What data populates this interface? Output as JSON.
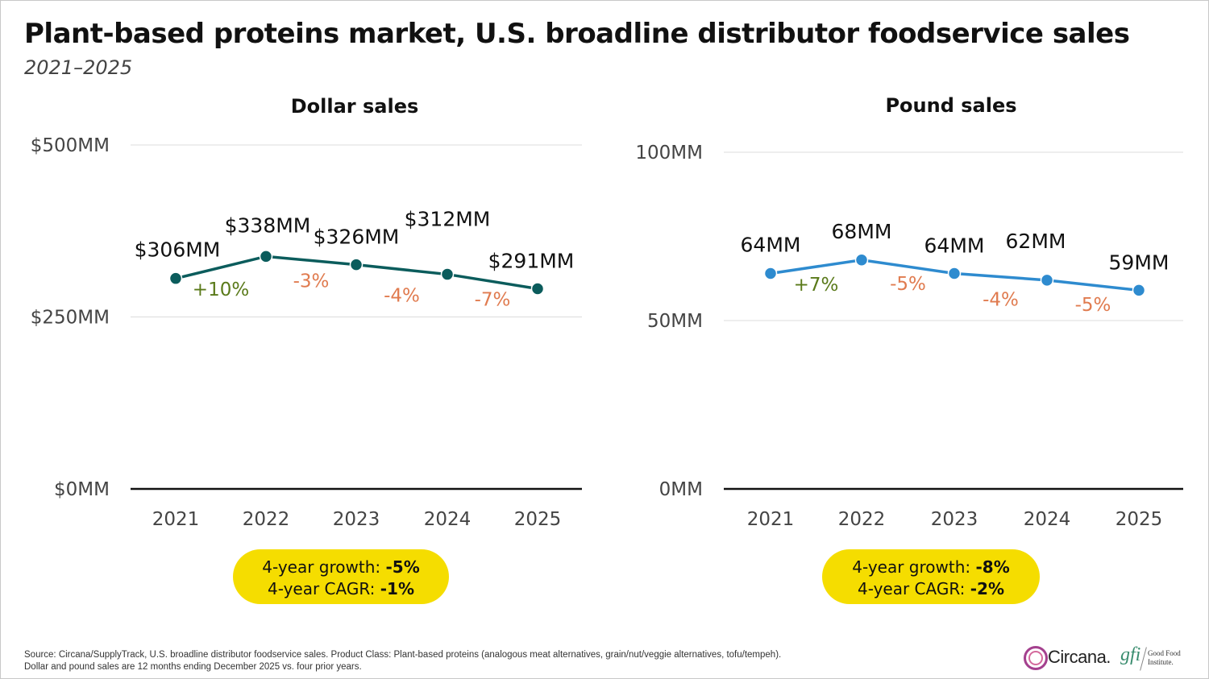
{
  "title": "Plant-based proteins market, U.S. broadline distributor foodservice sales",
  "subtitle": "2021–2025",
  "chart_data": [
    {
      "type": "line",
      "title": "Dollar sales",
      "categories": [
        "2021",
        "2022",
        "2023",
        "2024",
        "2025"
      ],
      "values": [
        306,
        338,
        326,
        312,
        291
      ],
      "value_labels": [
        "$306MM",
        "$338MM",
        "$326MM",
        "$312MM",
        "$291MM"
      ],
      "growth_labels": [
        "+10%",
        "-3%",
        "-4%",
        "-7%"
      ],
      "growth_values": [
        10,
        -3,
        -4,
        -7
      ],
      "yticks": [
        0,
        250,
        500
      ],
      "ytick_labels": [
        "$0MM",
        "$250MM",
        "$500MM"
      ],
      "ylim": [
        0,
        500
      ],
      "line_color": "#0b5c5c",
      "grid": true
    },
    {
      "type": "line",
      "title": "Pound sales",
      "categories": [
        "2021",
        "2022",
        "2023",
        "2024",
        "2025"
      ],
      "values": [
        64,
        68,
        64,
        62,
        59
      ],
      "value_labels": [
        "64MM",
        "68MM",
        "64MM",
        "62MM",
        "59MM"
      ],
      "growth_labels": [
        "+7%",
        "-5%",
        "-4%",
        "-5%"
      ],
      "growth_values": [
        7,
        -5,
        -4,
        -5
      ],
      "yticks": [
        0,
        50,
        100
      ],
      "ytick_labels": [
        "0MM",
        "50MM",
        "100MM"
      ],
      "ylim": [
        0,
        100
      ],
      "line_color": "#2e8bcf",
      "grid": true
    }
  ],
  "summary": [
    {
      "growth_label": "4-year growth: ",
      "growth_value": "-5%",
      "cagr_label": "4-year CAGR: ",
      "cagr_value": "-1%"
    },
    {
      "growth_label": "4-year growth: ",
      "growth_value": "-8%",
      "cagr_label": "4-year CAGR: ",
      "cagr_value": "-2%"
    }
  ],
  "colors": {
    "positive": "#5a7a1a",
    "negative": "#e07b4f",
    "highlight": "#f5dd00"
  },
  "footer": {
    "line1": "Source: Circana/SupplyTrack, U.S. broadline distributor foodservice sales.  Product Class: Plant-based proteins (analogous meat alternatives, grain/nut/veggie alternatives, tofu/tempeh).",
    "line2": "Dollar and pound sales are 12 months ending December 2025 vs. four prior years."
  },
  "logos": {
    "circana": "Circana.",
    "gfi_mark": "gfi",
    "gfi_name_1": "Good Food",
    "gfi_name_2": "Institute."
  }
}
